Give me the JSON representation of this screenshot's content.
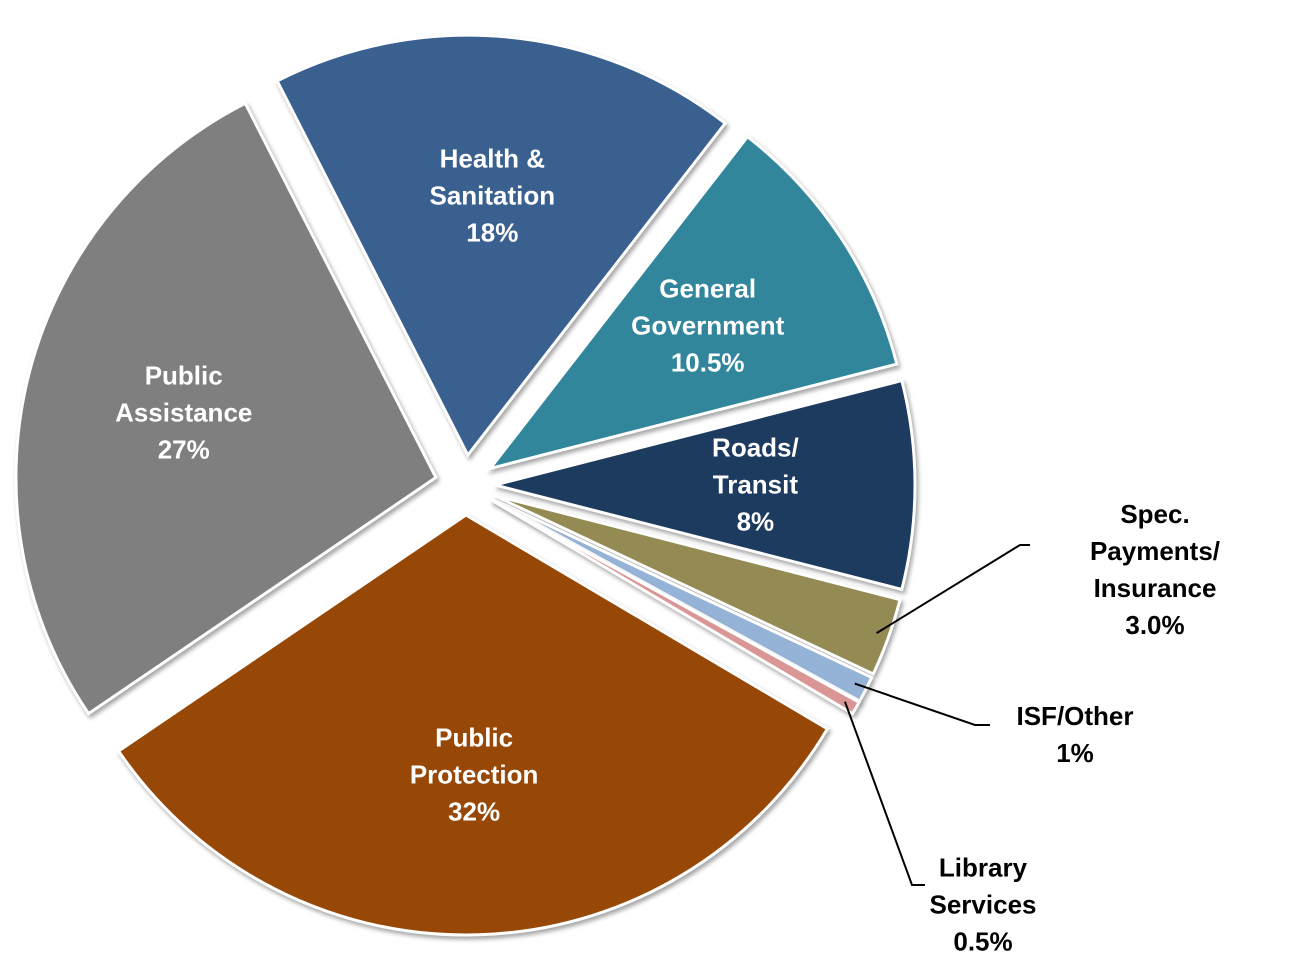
{
  "chart_data": {
    "type": "pie",
    "categories": [
      "Health &\nSanitation",
      "General\nGovernment",
      "Roads/\nTransit",
      "Spec. Payments/\nInsurance",
      "ISF/Other",
      "Library\nServices",
      "Public\nProtection",
      "Public\nAssistance"
    ],
    "values": [
      18,
      10.5,
      8,
      3.0,
      1,
      0.5,
      32,
      27
    ],
    "value_labels": [
      "18%",
      "10.5%",
      "8%",
      "3.0%",
      "1%",
      "0.5%",
      "32%",
      "27%"
    ],
    "colors": [
      "#3a6090",
      "#31869b",
      "#1d3a5f",
      "#948a54",
      "#95b3d7",
      "#d99694",
      "#974706",
      "#7f7f7f"
    ]
  }
}
